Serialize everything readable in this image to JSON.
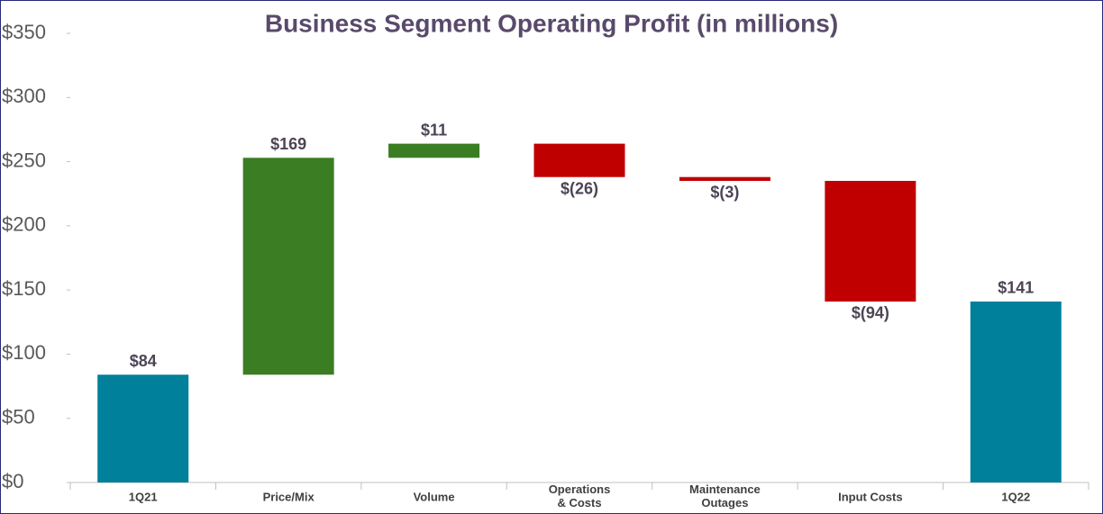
{
  "chart_data": {
    "type": "waterfall",
    "title": "Business Segment Operating Profit (in millions)",
    "categories": [
      "1Q21",
      "Price/Mix",
      "Volume",
      "Operations & Costs",
      "Maintenance Outages",
      "Input Costs",
      "1Q22"
    ],
    "values": [
      84,
      169,
      11,
      -26,
      -3,
      -94,
      141
    ],
    "value_labels": [
      "$84",
      "$169",
      "$11",
      "$(26)",
      "$(3)",
      "$(94)",
      "$141"
    ],
    "colors": [
      "#00809b",
      "#3a7d22",
      "#3a7d22",
      "#c00000",
      "#c00000",
      "#c00000",
      "#00809b"
    ],
    "ylim": [
      0,
      350
    ],
    "yticks": [
      {
        "value": 0,
        "label": "$0"
      },
      {
        "value": 50,
        "label": "$50"
      },
      {
        "value": 100,
        "label": "$100"
      },
      {
        "value": 150,
        "label": "$150"
      },
      {
        "value": 200,
        "label": "$200"
      },
      {
        "value": 250,
        "label": "$250"
      },
      {
        "value": 300,
        "label": "$300"
      },
      {
        "value": 350,
        "label": "$350"
      }
    ]
  }
}
